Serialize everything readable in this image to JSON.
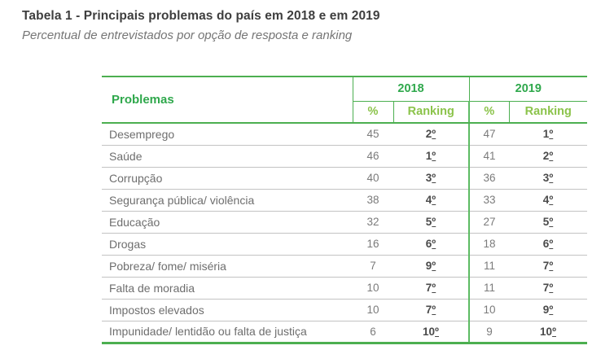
{
  "title": "Tabela 1 - Principais problemas do país em 2018 e em 2019",
  "subtitle": "Percentual de entrevistados por opção de resposta e ranking",
  "colors": {
    "green_border": "#4caf50",
    "green_header_text": "#2fa84c",
    "subheader_text": "#8bc34a",
    "group_separator": "#5dbb63",
    "row_separator": "#c3c3c3",
    "title_text": "#3e3e3e",
    "subtitle_text": "#757575",
    "body_text": "#6e6e6e",
    "rank_text": "#4a4a4a"
  },
  "table": {
    "problems_header": "Problemas",
    "year_groups": [
      {
        "year": "2018",
        "pct_header": "%",
        "ranking_header": "Ranking"
      },
      {
        "year": "2019",
        "pct_header": "%",
        "ranking_header": "Ranking"
      }
    ],
    "rows": [
      {
        "problem": "Desemprego",
        "pct_2018": "45",
        "rank_2018": "2º",
        "pct_2019": "47",
        "rank_2019": "1º"
      },
      {
        "problem": "Saúde",
        "pct_2018": "46",
        "rank_2018": "1º",
        "pct_2019": "41",
        "rank_2019": "2º"
      },
      {
        "problem": "Corrupção",
        "pct_2018": "40",
        "rank_2018": "3º",
        "pct_2019": "36",
        "rank_2019": "3º"
      },
      {
        "problem": "Segurança pública/ violência",
        "pct_2018": "38",
        "rank_2018": "4º",
        "pct_2019": "33",
        "rank_2019": "4º"
      },
      {
        "problem": "Educação",
        "pct_2018": "32",
        "rank_2018": "5º",
        "pct_2019": "27",
        "rank_2019": "5º"
      },
      {
        "problem": "Drogas",
        "pct_2018": "16",
        "rank_2018": "6º",
        "pct_2019": "18",
        "rank_2019": "6º"
      },
      {
        "problem": "Pobreza/ fome/ miséria",
        "pct_2018": "7",
        "rank_2018": "9º",
        "pct_2019": "11",
        "rank_2019": "7º"
      },
      {
        "problem": "Falta de moradia",
        "pct_2018": "10",
        "rank_2018": "7º",
        "pct_2019": "11",
        "rank_2019": "7º"
      },
      {
        "problem": "Impostos elevados",
        "pct_2018": "10",
        "rank_2018": "7º",
        "pct_2019": "10",
        "rank_2019": "9º"
      },
      {
        "problem": "Impunidade/ lentidão ou falta de justiça",
        "pct_2018": "6",
        "rank_2018": "10º",
        "pct_2019": "9",
        "rank_2019": "10º"
      }
    ]
  }
}
